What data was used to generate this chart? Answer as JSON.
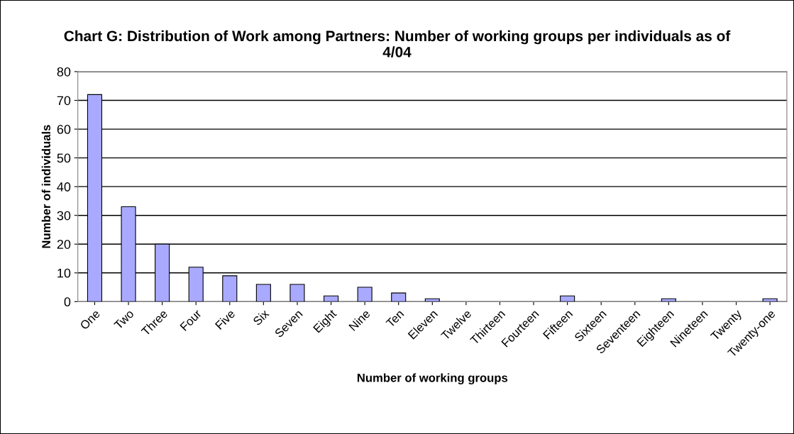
{
  "chart_data": {
    "type": "bar",
    "title": "Chart G: Distribution of Work among Partners: Number of working groups per individuals as of 4/04",
    "xlabel": "Number of working groups",
    "ylabel": "Number of individuals",
    "categories": [
      "One",
      "Two",
      "Three",
      "Four",
      "Five",
      "Six",
      "Seven",
      "Eight",
      "Nine",
      "Ten",
      "Eleven",
      "Twelve",
      "Thirteen",
      "Fourteen",
      "Fifteen",
      "Sixteen",
      "Seventeen",
      "Eighteen",
      "Nineteen",
      "Twenty",
      "Twenty-one"
    ],
    "values": [
      72,
      33,
      20,
      12,
      9,
      6,
      6,
      2,
      5,
      3,
      1,
      0,
      0,
      0,
      2,
      0,
      0,
      1,
      0,
      0,
      1
    ],
    "color": "#a9aaff",
    "ylim": [
      0,
      80
    ],
    "yticks": [
      0,
      10,
      20,
      30,
      40,
      50,
      60,
      70,
      80
    ],
    "grid": "y",
    "legend": false
  }
}
